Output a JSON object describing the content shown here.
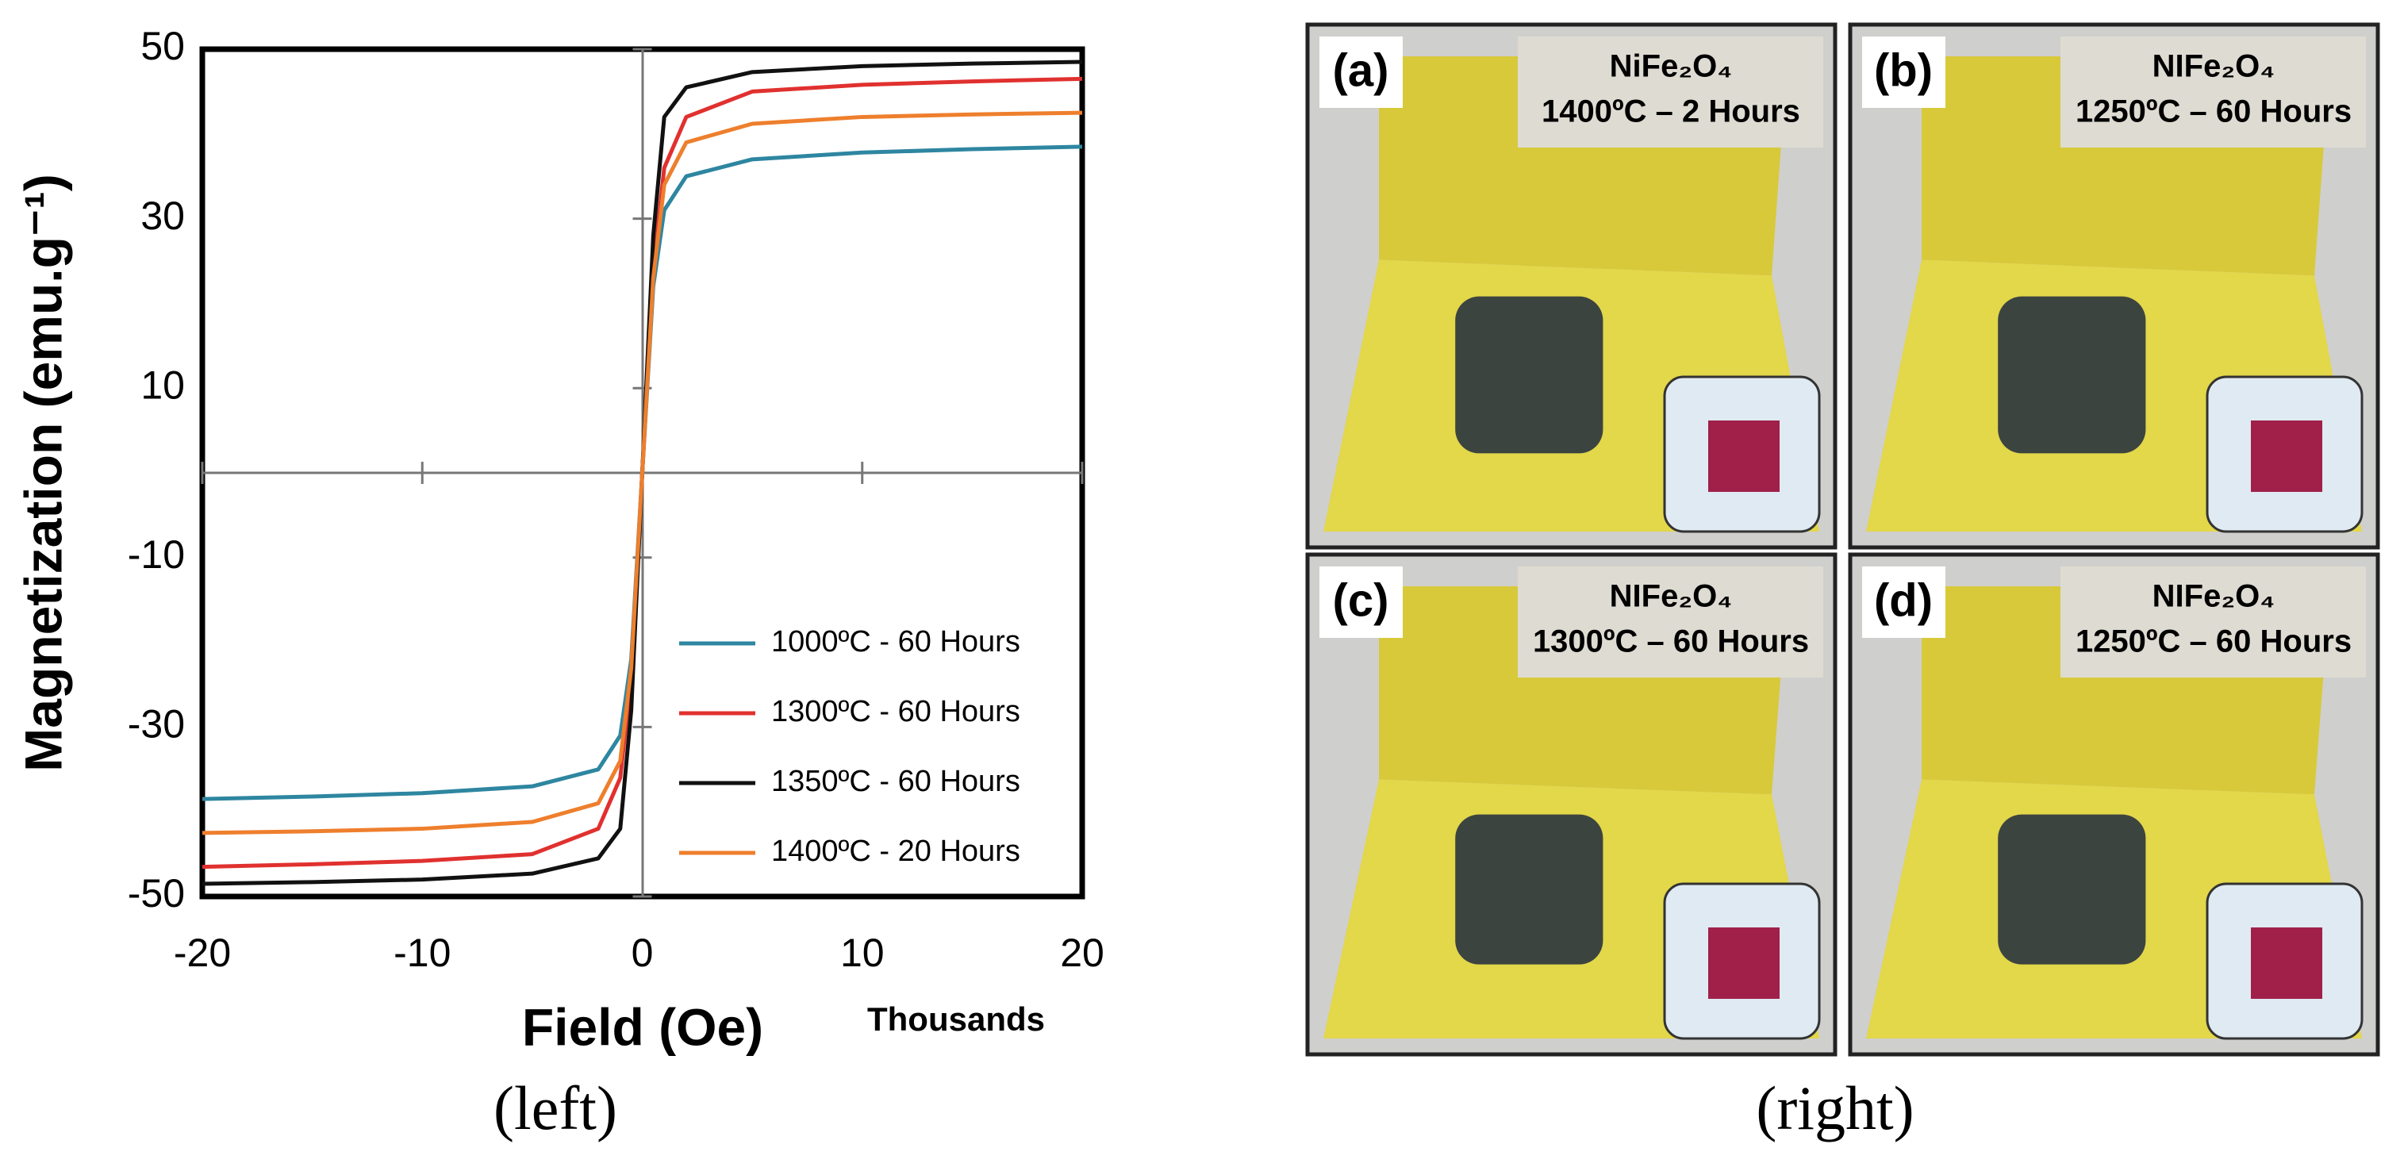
{
  "chart_data": {
    "type": "line",
    "ylabel": "Magnetization (emu.g⁻¹)",
    "xlabel": "Field (Oe)",
    "xunit": "Thousands",
    "x": [
      -20,
      -15,
      -10,
      -5,
      -2,
      -1,
      -0.5,
      0,
      0.5,
      1,
      2,
      5,
      10,
      15,
      20
    ],
    "series": [
      {
        "name": "1000ºC - 60 Hours",
        "color": "#2e86a0",
        "values": [
          -38.5,
          -38.2,
          -37.8,
          -37,
          -35,
          -31,
          -22,
          0,
          22,
          31,
          35,
          37,
          37.8,
          38.2,
          38.5
        ]
      },
      {
        "name": "1300ºC - 60 Hours",
        "color": "#e0312f",
        "values": [
          -46.5,
          -46.2,
          -45.8,
          -45,
          -42,
          -36,
          -24,
          0,
          24,
          36,
          42,
          45,
          45.8,
          46.2,
          46.5
        ]
      },
      {
        "name": "1350ºC - 60 Hours",
        "color": "#111111",
        "values": [
          -48.5,
          -48.3,
          -48,
          -47.3,
          -45.5,
          -42,
          -28,
          0,
          28,
          42,
          45.5,
          47.3,
          48,
          48.3,
          48.5
        ]
      },
      {
        "name": "1400ºC - 20 Hours",
        "color": "#ee7f2d",
        "values": [
          -42.5,
          -42.3,
          -42,
          -41.2,
          -39,
          -34,
          -23,
          0,
          23,
          34,
          39,
          41.2,
          42,
          42.3,
          42.5
        ]
      }
    ],
    "xlim": [
      -20,
      20
    ],
    "xticks": [
      -20,
      -10,
      0,
      10,
      20
    ],
    "ylim": [
      -50,
      50
    ],
    "yticks": [
      50,
      30,
      10,
      -10,
      -30,
      -50
    ],
    "legend": "lower right"
  },
  "panels": [
    {
      "label": "(a)",
      "title": "NiFe₂O₄",
      "subtitle": "1400ºC – 2 Hours"
    },
    {
      "label": "(b)",
      "title": "NIFe₂O₄",
      "subtitle": "1250ºC – 60 Hours"
    },
    {
      "label": "(c)",
      "title": "NIFe₂O₄",
      "subtitle": "1300ºC – 60 Hours"
    },
    {
      "label": "(d)",
      "title": "NIFe₂O₄",
      "subtitle": "1250ºC – 60 Hours"
    }
  ],
  "captions": {
    "left": "(left)",
    "right": "(right)"
  }
}
